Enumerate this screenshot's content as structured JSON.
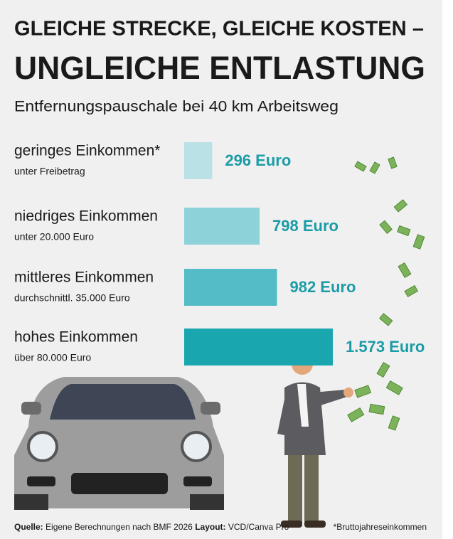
{
  "chart_data": {
    "type": "bar",
    "orientation": "horizontal",
    "title": "GLEICHE STRECKE, GLEICHE KOSTEN –",
    "title_line2": "UNGLEICHE ENTLASTUNG",
    "subtitle": "Entfernungspauschale bei 40 km Arbeitsweg",
    "categories": [
      "geringes Einkommen*",
      "niedriges Einkommen",
      "mittleres Einkommen",
      "hohes Einkommen"
    ],
    "category_notes": [
      "unter Freibetrag",
      "unter 20.000 Euro",
      "durchschnittl. 35.000 Euro",
      "über 80.000 Euro"
    ],
    "values": [
      296,
      798,
      982,
      1573
    ],
    "value_labels": [
      "296 Euro",
      "798 Euro",
      "982 Euro",
      "1.573 Euro"
    ],
    "colors": [
      "#b9e1e6",
      "#8ed2d9",
      "#53bcc6",
      "#19a6af"
    ],
    "value_label_color": "#1b9ca6",
    "source_label": "Quelle:",
    "source": "Eigene Berechnungen nach BMF 2026",
    "layout_label": "Layout:",
    "layout": "VCD/Canva Pro",
    "footnote": "*Bruttojahreseinkommen"
  }
}
